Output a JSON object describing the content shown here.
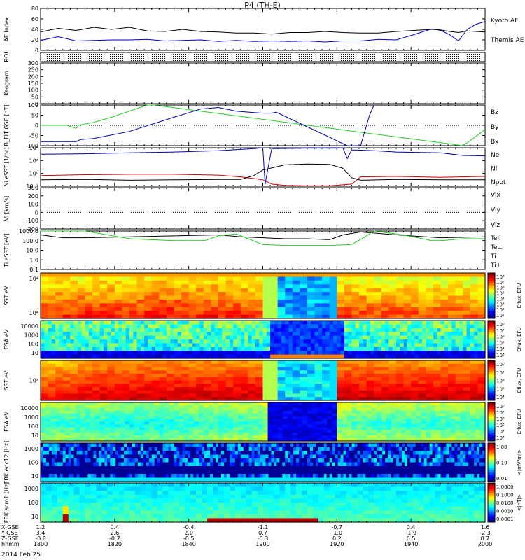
{
  "figure": {
    "title": "P4 (TH-E)",
    "date": "2014 Feb 25"
  },
  "chart_data": [
    {
      "type": "line",
      "panel": "AE Index",
      "ylabel": "AE Index",
      "ylim": [
        0,
        80
      ],
      "yticks": [
        "0",
        "20",
        "40",
        "60",
        "80"
      ],
      "series": [
        {
          "name": "Kyoto AE",
          "color": "#0000cc",
          "x": [
            0,
            0.04,
            0.08,
            0.12,
            0.16,
            0.2,
            0.24,
            0.28,
            0.32,
            0.36,
            0.4,
            0.44,
            0.48,
            0.52,
            0.56,
            0.6,
            0.64,
            0.68,
            0.72,
            0.76,
            0.8,
            0.84,
            0.88,
            0.9,
            0.92,
            0.94,
            0.96,
            0.98,
            1.0
          ],
          "y": [
            19,
            26,
            18,
            19,
            20,
            20,
            21,
            18,
            19,
            20,
            17,
            19,
            17,
            18,
            17,
            18,
            16,
            18,
            18,
            21,
            20,
            30,
            41,
            38,
            30,
            18,
            40,
            50,
            55
          ]
        },
        {
          "name": "Themis AE",
          "color": "#000000",
          "x": [
            0,
            0.04,
            0.08,
            0.12,
            0.16,
            0.2,
            0.24,
            0.28,
            0.32,
            0.36,
            0.4,
            0.44,
            0.48,
            0.52,
            0.56,
            0.6,
            0.64,
            0.68,
            0.72,
            0.76,
            0.8,
            0.84,
            0.88,
            0.9,
            0.92,
            0.94,
            0.96,
            0.98,
            1.0
          ],
          "y": [
            35,
            42,
            38,
            44,
            40,
            44,
            37,
            36,
            40,
            36,
            35,
            33,
            33,
            31,
            34,
            34,
            36,
            34,
            33,
            33,
            36,
            38,
            40,
            39,
            36,
            34,
            37,
            36,
            35
          ]
        }
      ]
    },
    {
      "type": "line",
      "panel": "ROI",
      "ylabel": "ROI"
    },
    {
      "type": "line",
      "panel": "Keogram",
      "ylabel": "Keogram",
      "ylim": [
        0,
        300
      ],
      "yticks": [
        "0",
        "50",
        "100",
        "150",
        "200",
        "250",
        "300"
      ]
    },
    {
      "type": "line",
      "panel": "B FIT GSE",
      "ylabel": "B_FIT GSE [nT]",
      "ylim": [
        -100,
        100
      ],
      "yticks": [
        "-100",
        "-50",
        "0",
        "50",
        "100"
      ],
      "series": [
        {
          "name": "Bz",
          "color": "#cc0000",
          "x": [],
          "y": []
        },
        {
          "name": "By",
          "color": "#22cc22",
          "x": [
            0,
            0.06,
            0.08,
            0.085,
            0.09,
            0.12,
            0.16,
            0.2,
            0.24,
            0.255,
            0.95,
            0.97,
            1.0
          ],
          "y": [
            0,
            0,
            -15,
            0,
            2,
            15,
            40,
            70,
            100,
            110,
            -100,
            -70,
            -20
          ]
        },
        {
          "name": "Bx",
          "color": "#0000aa",
          "x": [
            0,
            0.08,
            0.09,
            0.12,
            0.2,
            0.3,
            0.36,
            0.4,
            0.44,
            0.48,
            0.5,
            0.52,
            0.53,
            0.69,
            0.72,
            0.74,
            0.75
          ],
          "y": [
            -80,
            -80,
            -70,
            -65,
            -30,
            40,
            80,
            88,
            70,
            63,
            60,
            60,
            65,
            -100,
            -100,
            50,
            100
          ]
        }
      ]
    },
    {
      "type": "line",
      "panel": "Ni",
      "ylabel": "Ni eSST [1/cc]",
      "ylim": [
        -3,
        6
      ],
      "yticks": [
        "10⁻³",
        "10⁰",
        "10³",
        "10⁶"
      ],
      "series": [
        {
          "name": "Ne",
          "color": "#cc0000",
          "x": [
            0,
            0.1,
            0.2,
            0.3,
            0.4,
            0.45,
            0.5,
            0.52,
            0.55,
            0.6,
            0.65,
            0.7,
            0.72,
            0.8,
            0.9,
            1.0
          ],
          "y": [
            -0.5,
            -0.3,
            -0.2,
            -0.2,
            -0.4,
            -0.8,
            -1.5,
            -2.5,
            -2.8,
            -2.9,
            -2.9,
            -2.5,
            -0.8,
            -0.7,
            -0.9,
            -0.7
          ]
        },
        {
          "name": "Nl",
          "color": "#000000",
          "x": [
            0,
            0.1,
            0.2,
            0.3,
            0.4,
            0.45,
            0.48,
            0.5,
            0.55,
            0.6,
            0.65,
            0.68,
            0.7,
            0.72,
            0.8,
            0.9,
            1.0
          ],
          "y": [
            -1.5,
            -1.4,
            -1.6,
            -1.5,
            -1.4,
            -1.4,
            -0.5,
            0.8,
            2.0,
            2.2,
            2.1,
            1.2,
            -1.0,
            -1.6,
            -1.4,
            -1.5,
            -1.5
          ]
        },
        {
          "name": "Npot",
          "color": "#0000aa",
          "x": [
            0,
            0.1,
            0.2,
            0.3,
            0.4,
            0.48,
            0.5,
            0.505,
            0.52,
            0.6,
            0.67,
            0.68,
            0.69,
            0.7,
            0.75,
            0.8,
            0.9,
            0.95,
            1.0
          ],
          "y": [
            4.5,
            4.6,
            4.8,
            5.0,
            5.3,
            5.8,
            6.0,
            -2.5,
            5.8,
            5.9,
            5.9,
            6.0,
            3.5,
            5.5,
            5.3,
            5.0,
            4.8,
            4.2,
            4.1
          ]
        }
      ]
    },
    {
      "type": "line",
      "panel": "Vi",
      "ylabel": "Vi [km/s]",
      "ylim": [
        -200,
        300
      ],
      "yticks": [
        "-200",
        "-100",
        "0",
        "100",
        "200",
        "300"
      ],
      "series": [
        {
          "name": "Vix",
          "color": "#cc0000",
          "x": [],
          "y": []
        },
        {
          "name": "Viy",
          "color": "#22cc22",
          "x": [],
          "y": []
        },
        {
          "name": "Viz",
          "color": "#0000aa",
          "x": [],
          "y": []
        }
      ]
    },
    {
      "type": "line",
      "panel": "Ti",
      "ylabel": "Ti eSST [eV]",
      "ylim": [
        -1,
        3
      ],
      "yticks": [
        "0.1",
        "1.0",
        "10.0",
        "100.0",
        "1000.0"
      ],
      "series": [
        {
          "name": "Teli",
          "color": "#000000",
          "x": [
            0,
            0.05,
            0.1,
            0.2,
            0.3,
            0.4,
            0.45,
            0.5,
            0.55,
            0.6,
            0.65,
            0.68,
            0.72,
            0.8,
            0.9,
            1.0
          ],
          "y": [
            2.6,
            2.3,
            2.3,
            2.4,
            2.5,
            2.6,
            2.4,
            2.3,
            2.2,
            2.2,
            2.1,
            2.6,
            2.9,
            2.6,
            2.3,
            2.4
          ]
        },
        {
          "name": "Te⊥",
          "color": "#cc0000",
          "x": [],
          "y": []
        },
        {
          "name": "Ti",
          "color": "#22cc22",
          "x": [
            0,
            0.05,
            0.1,
            0.15,
            0.2,
            0.25,
            0.3,
            0.37,
            0.4,
            0.44,
            0.5,
            0.55,
            0.6,
            0.65,
            0.7,
            0.73,
            0.75,
            0.8,
            0.85,
            0.88,
            0.9,
            0.95,
            1.0
          ],
          "y": [
            3.0,
            3.1,
            3.0,
            2.6,
            2.2,
            2.1,
            2.0,
            2.0,
            2.5,
            2.7,
            1.6,
            1.5,
            1.5,
            1.5,
            1.6,
            2.4,
            3.0,
            2.7,
            2.3,
            2.0,
            2.0,
            2.2,
            2.2
          ]
        },
        {
          "name": "Ti⊥",
          "color": "#0000aa",
          "x": [],
          "y": []
        }
      ]
    },
    {
      "type": "heatmap",
      "panel": "SST",
      "ylabel": "SST eV",
      "yticks": [
        "10⁴",
        "10⁴"
      ],
      "colorbar": {
        "label": "Eflux, EFU",
        "ticks": [
          "10⁸",
          "10⁷",
          "10⁶",
          "10⁵",
          "10⁴",
          "10³",
          "10²",
          "10¹"
        ]
      }
    },
    {
      "type": "heatmap",
      "panel": "ESA",
      "ylabel": "ESA eV",
      "yticks": [
        "10000",
        "1000",
        "100",
        "10"
      ],
      "colorbar": {
        "label": "Eflux, EFU",
        "ticks": [
          "10⁸",
          "10⁷",
          "10⁶",
          "10⁵",
          "10⁴",
          "10³"
        ]
      }
    },
    {
      "type": "heatmap",
      "panel": "SST",
      "ylabel": "SST eV",
      "yticks": [
        "10³"
      ],
      "colorbar": {
        "label": "Eflux, EFU",
        "ticks": [
          "10⁸",
          "10⁷",
          "10⁶",
          "10⁵",
          "10⁴"
        ]
      }
    },
    {
      "type": "heatmap",
      "panel": "ESA",
      "ylabel": "ESA eV",
      "yticks": [
        "10000",
        "1000",
        "100",
        "10"
      ],
      "colorbar": {
        "label": "Eflux, EFU",
        "ticks": [
          "10⁸",
          "10⁷",
          "10⁶",
          "10⁵",
          "10⁴",
          "10³"
        ]
      }
    },
    {
      "type": "heatmap",
      "panel": "FBK edc12",
      "ylabel": "FBK edc12 [Hz]",
      "yticks": [
        "1000",
        "100",
        "10"
      ],
      "colorbar": {
        "label": "<|mV/m|>",
        "ticks": [
          "1.00",
          "0.10",
          "0.01"
        ]
      }
    },
    {
      "type": "heatmap",
      "panel": "FBK scm1",
      "ylabel": "FBK scm1 [Hz]",
      "yticks": [
        "1000",
        "100",
        "10"
      ],
      "colorbar": {
        "label": "<|nT|>",
        "ticks": [
          "1.0000",
          "0.1000",
          "0.0100",
          "0.0010",
          "0.0001"
        ]
      }
    }
  ],
  "axis_table": {
    "row_labels": [
      "X-GSE",
      "Y-GSE",
      "Z-GSE",
      "hhmm"
    ],
    "columns": [
      [
        "1.2",
        "3.4",
        "-0.8",
        "1800"
      ],
      [
        "0.4",
        "2.6",
        "-0.7",
        "1820"
      ],
      [
        "-0.4",
        "2.0",
        "-0.5",
        "1840"
      ],
      [
        "-1.1",
        "0.7",
        "-0.3",
        "1900"
      ],
      [
        "-0.7",
        "-1.0",
        "0.2",
        "1920"
      ],
      [
        "0.4",
        "-1.9",
        "0.5",
        "1940"
      ],
      [
        "1.6",
        "-2.3",
        "0.7",
        "2000"
      ]
    ]
  }
}
